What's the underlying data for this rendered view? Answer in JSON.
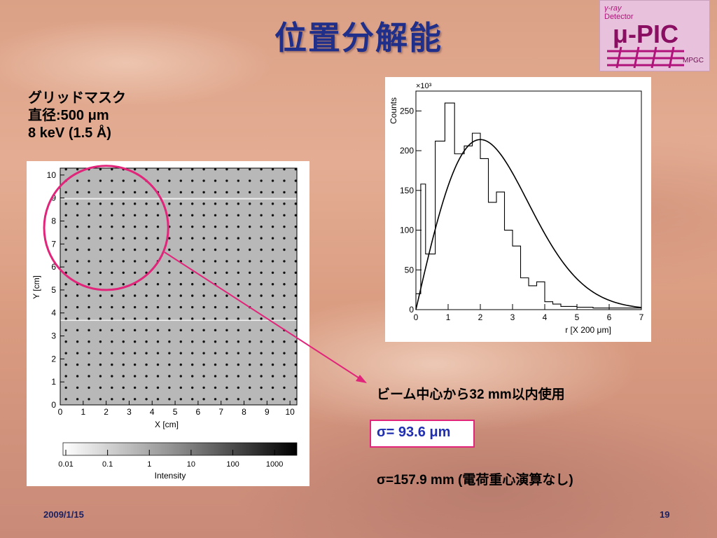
{
  "slide": {
    "title": "位置分解能",
    "mask_info": [
      "グリッドマスク",
      "直径:500 μm",
      "8 keV (1.5 Å)"
    ],
    "note_beam": "ビーム中心から32 mm以内使用",
    "sigma_highlight": "σ= 93.6 μm",
    "sigma_other": "σ=157.9 mm (電荷重心演算なし)",
    "footer_date": "2009/1/15",
    "page_number": "19",
    "logo": {
      "line1": "γ-ray",
      "line2": "Detector",
      "brand": "μ-PIC",
      "sub": "MPGC"
    },
    "colors": {
      "title": "#1f2f8a",
      "highlight_border": "#e0257a",
      "highlight_text": "#1f2fb0"
    }
  },
  "chart_data": [
    {
      "type": "heatmap",
      "xlabel": "X [cm]",
      "ylabel": "Y [cm]",
      "xlim": [
        0,
        10.3
      ],
      "ylim": [
        0,
        10.3
      ],
      "xticks": [
        "0",
        "1",
        "2",
        "3",
        "4",
        "5",
        "6",
        "7",
        "8",
        "9",
        "10"
      ],
      "yticks": [
        "0",
        "1",
        "2",
        "3",
        "4",
        "5",
        "6",
        "7",
        "8",
        "9",
        "10"
      ],
      "colorbar": {
        "label": "Intensity",
        "ticks": [
          "0.01",
          "0.1",
          "1",
          "10",
          "100",
          "1000"
        ],
        "scale": "log"
      },
      "grid_pitch_cm": 0.5,
      "highlight_circle": {
        "center": [
          2.0,
          7.7
        ],
        "radius": 2.7
      }
    },
    {
      "type": "bar",
      "histogram": true,
      "xlabel": "r [X 200 μm]",
      "ylabel": "Counts",
      "y_multiplier": "×10³",
      "xlim": [
        0,
        7
      ],
      "ylim": [
        0,
        275
      ],
      "xticks": [
        "0",
        "1",
        "2",
        "3",
        "4",
        "5",
        "6",
        "7"
      ],
      "yticks": [
        "0",
        "50",
        "100",
        "150",
        "200",
        "250"
      ],
      "bin_edges": [
        0,
        0.15,
        0.3,
        0.6,
        0.9,
        1.2,
        1.5,
        1.75,
        2.0,
        2.25,
        2.5,
        2.75,
        3.0,
        3.25,
        3.5,
        3.75,
        4.0,
        4.25,
        4.5,
        5.0,
        5.5,
        6.0,
        7.0
      ],
      "values": [
        20,
        158,
        70,
        212,
        260,
        196,
        206,
        222,
        190,
        135,
        148,
        100,
        80,
        40,
        30,
        35,
        10,
        7,
        4,
        3,
        2,
        2
      ],
      "fit": {
        "type": "gaussian-like",
        "peak_x": 2.0,
        "peak_y": 214
      }
    }
  ]
}
